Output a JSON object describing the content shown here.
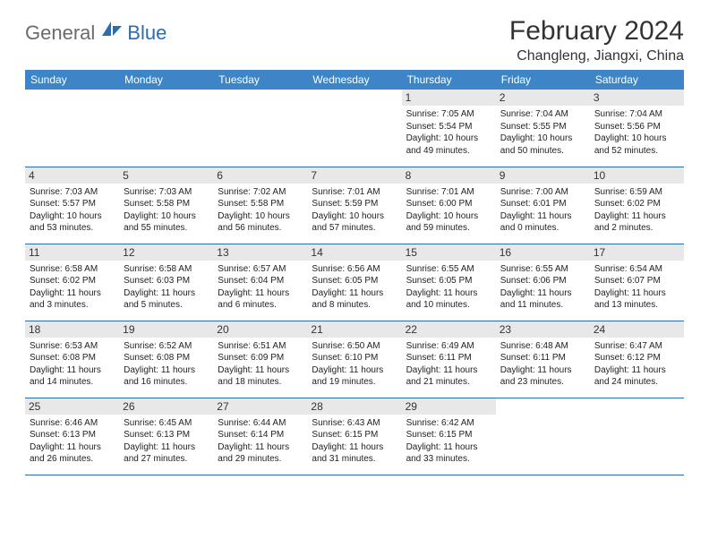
{
  "brand": {
    "part1": "General",
    "part2": "Blue"
  },
  "title": "February 2024",
  "location": "Changleng, Jiangxi, China",
  "header_bg": "#3d85c6",
  "border_color": "#2a6db0",
  "daynum_bg": "#e8e8e8",
  "dayHeaders": [
    "Sunday",
    "Monday",
    "Tuesday",
    "Wednesday",
    "Thursday",
    "Friday",
    "Saturday"
  ],
  "weeks": [
    [
      {
        "num": "",
        "lines": []
      },
      {
        "num": "",
        "lines": []
      },
      {
        "num": "",
        "lines": []
      },
      {
        "num": "",
        "lines": []
      },
      {
        "num": "1",
        "lines": [
          "Sunrise: 7:05 AM",
          "Sunset: 5:54 PM",
          "Daylight: 10 hours and 49 minutes."
        ]
      },
      {
        "num": "2",
        "lines": [
          "Sunrise: 7:04 AM",
          "Sunset: 5:55 PM",
          "Daylight: 10 hours and 50 minutes."
        ]
      },
      {
        "num": "3",
        "lines": [
          "Sunrise: 7:04 AM",
          "Sunset: 5:56 PM",
          "Daylight: 10 hours and 52 minutes."
        ]
      }
    ],
    [
      {
        "num": "4",
        "lines": [
          "Sunrise: 7:03 AM",
          "Sunset: 5:57 PM",
          "Daylight: 10 hours and 53 minutes."
        ]
      },
      {
        "num": "5",
        "lines": [
          "Sunrise: 7:03 AM",
          "Sunset: 5:58 PM",
          "Daylight: 10 hours and 55 minutes."
        ]
      },
      {
        "num": "6",
        "lines": [
          "Sunrise: 7:02 AM",
          "Sunset: 5:58 PM",
          "Daylight: 10 hours and 56 minutes."
        ]
      },
      {
        "num": "7",
        "lines": [
          "Sunrise: 7:01 AM",
          "Sunset: 5:59 PM",
          "Daylight: 10 hours and 57 minutes."
        ]
      },
      {
        "num": "8",
        "lines": [
          "Sunrise: 7:01 AM",
          "Sunset: 6:00 PM",
          "Daylight: 10 hours and 59 minutes."
        ]
      },
      {
        "num": "9",
        "lines": [
          "Sunrise: 7:00 AM",
          "Sunset: 6:01 PM",
          "Daylight: 11 hours and 0 minutes."
        ]
      },
      {
        "num": "10",
        "lines": [
          "Sunrise: 6:59 AM",
          "Sunset: 6:02 PM",
          "Daylight: 11 hours and 2 minutes."
        ]
      }
    ],
    [
      {
        "num": "11",
        "lines": [
          "Sunrise: 6:58 AM",
          "Sunset: 6:02 PM",
          "Daylight: 11 hours and 3 minutes."
        ]
      },
      {
        "num": "12",
        "lines": [
          "Sunrise: 6:58 AM",
          "Sunset: 6:03 PM",
          "Daylight: 11 hours and 5 minutes."
        ]
      },
      {
        "num": "13",
        "lines": [
          "Sunrise: 6:57 AM",
          "Sunset: 6:04 PM",
          "Daylight: 11 hours and 6 minutes."
        ]
      },
      {
        "num": "14",
        "lines": [
          "Sunrise: 6:56 AM",
          "Sunset: 6:05 PM",
          "Daylight: 11 hours and 8 minutes."
        ]
      },
      {
        "num": "15",
        "lines": [
          "Sunrise: 6:55 AM",
          "Sunset: 6:05 PM",
          "Daylight: 11 hours and 10 minutes."
        ]
      },
      {
        "num": "16",
        "lines": [
          "Sunrise: 6:55 AM",
          "Sunset: 6:06 PM",
          "Daylight: 11 hours and 11 minutes."
        ]
      },
      {
        "num": "17",
        "lines": [
          "Sunrise: 6:54 AM",
          "Sunset: 6:07 PM",
          "Daylight: 11 hours and 13 minutes."
        ]
      }
    ],
    [
      {
        "num": "18",
        "lines": [
          "Sunrise: 6:53 AM",
          "Sunset: 6:08 PM",
          "Daylight: 11 hours and 14 minutes."
        ]
      },
      {
        "num": "19",
        "lines": [
          "Sunrise: 6:52 AM",
          "Sunset: 6:08 PM",
          "Daylight: 11 hours and 16 minutes."
        ]
      },
      {
        "num": "20",
        "lines": [
          "Sunrise: 6:51 AM",
          "Sunset: 6:09 PM",
          "Daylight: 11 hours and 18 minutes."
        ]
      },
      {
        "num": "21",
        "lines": [
          "Sunrise: 6:50 AM",
          "Sunset: 6:10 PM",
          "Daylight: 11 hours and 19 minutes."
        ]
      },
      {
        "num": "22",
        "lines": [
          "Sunrise: 6:49 AM",
          "Sunset: 6:11 PM",
          "Daylight: 11 hours and 21 minutes."
        ]
      },
      {
        "num": "23",
        "lines": [
          "Sunrise: 6:48 AM",
          "Sunset: 6:11 PM",
          "Daylight: 11 hours and 23 minutes."
        ]
      },
      {
        "num": "24",
        "lines": [
          "Sunrise: 6:47 AM",
          "Sunset: 6:12 PM",
          "Daylight: 11 hours and 24 minutes."
        ]
      }
    ],
    [
      {
        "num": "25",
        "lines": [
          "Sunrise: 6:46 AM",
          "Sunset: 6:13 PM",
          "Daylight: 11 hours and 26 minutes."
        ]
      },
      {
        "num": "26",
        "lines": [
          "Sunrise: 6:45 AM",
          "Sunset: 6:13 PM",
          "Daylight: 11 hours and 27 minutes."
        ]
      },
      {
        "num": "27",
        "lines": [
          "Sunrise: 6:44 AM",
          "Sunset: 6:14 PM",
          "Daylight: 11 hours and 29 minutes."
        ]
      },
      {
        "num": "28",
        "lines": [
          "Sunrise: 6:43 AM",
          "Sunset: 6:15 PM",
          "Daylight: 11 hours and 31 minutes."
        ]
      },
      {
        "num": "29",
        "lines": [
          "Sunrise: 6:42 AM",
          "Sunset: 6:15 PM",
          "Daylight: 11 hours and 33 minutes."
        ]
      },
      {
        "num": "",
        "lines": []
      },
      {
        "num": "",
        "lines": []
      }
    ]
  ]
}
